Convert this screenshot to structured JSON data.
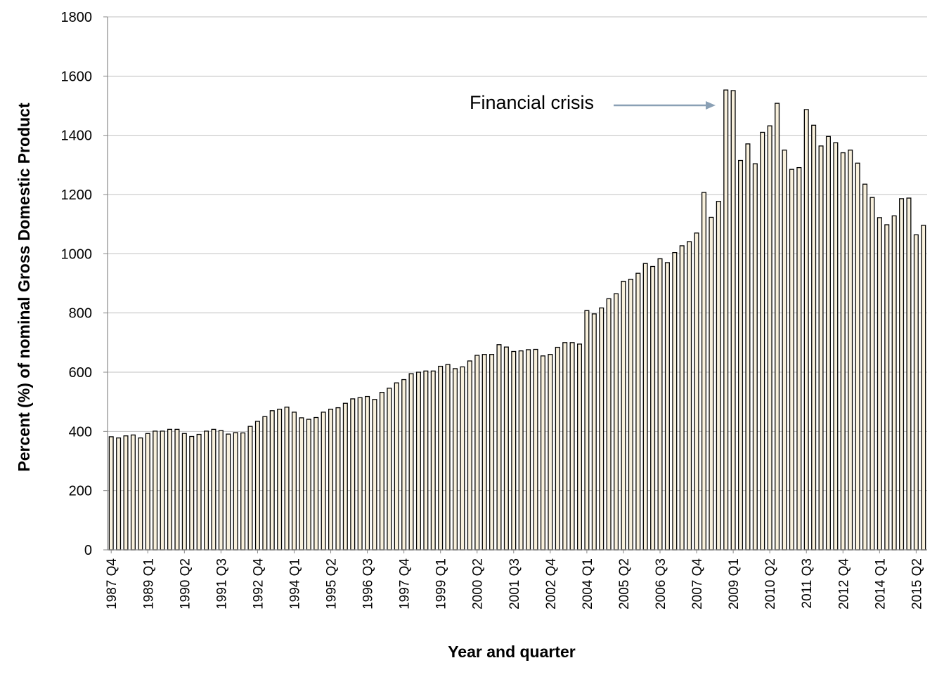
{
  "chart_data": {
    "type": "bar",
    "xlabel": "Year and quarter",
    "ylabel": "Percent (%) of nominal Gross Domestic Product",
    "ylim": [
      0,
      1800
    ],
    "yticks": [
      0,
      200,
      400,
      600,
      800,
      1000,
      1200,
      1400,
      1600,
      1800
    ],
    "grid": true,
    "colors": {
      "bar_fill": "#f8f0dc",
      "bar_stroke": "#000000",
      "grid": "#c0c0c0",
      "arrow": "#8aa0b5"
    },
    "x_tick_labels": [
      "1987 Q4",
      "1989 Q1",
      "1990 Q2",
      "1991 Q3",
      "1992 Q4",
      "1994 Q1",
      "1995 Q2",
      "1996 Q3",
      "1997 Q4",
      "1999 Q1",
      "2000 Q2",
      "2001 Q3",
      "2002 Q4",
      "2004 Q1",
      "2005 Q2",
      "2006 Q3",
      "2007 Q4",
      "2009 Q1",
      "2010 Q2",
      "2011 Q3",
      "2012 Q4",
      "2014 Q1",
      "2015 Q2"
    ],
    "annotation": {
      "text": "Financial crisis",
      "points_to": "2008 Q4"
    },
    "start": {
      "year": 1987,
      "quarter": 4
    },
    "values": [
      382,
      378,
      385,
      388,
      378,
      393,
      401,
      401,
      407,
      407,
      393,
      383,
      390,
      401,
      407,
      403,
      391,
      396,
      395,
      417,
      434,
      450,
      470,
      475,
      482,
      465,
      446,
      441,
      447,
      465,
      475,
      480,
      495,
      510,
      514,
      518,
      508,
      532,
      546,
      564,
      575,
      595,
      600,
      604,
      604,
      620,
      626,
      612,
      618,
      638,
      657,
      660,
      660,
      693,
      685,
      670,
      672,
      676,
      677,
      655,
      660,
      684,
      700,
      700,
      695,
      808,
      797,
      817,
      848,
      865,
      907,
      914,
      934,
      967,
      957,
      983,
      970,
      1004,
      1027,
      1041,
      1070,
      1207,
      1123,
      1177,
      1553,
      1551,
      1315,
      1371,
      1304,
      1410,
      1432,
      1508,
      1350,
      1285,
      1291,
      1487,
      1434,
      1364,
      1396,
      1375,
      1341,
      1350,
      1306,
      1235,
      1190,
      1122,
      1098,
      1128,
      1186,
      1188,
      1064,
      1096
    ]
  }
}
